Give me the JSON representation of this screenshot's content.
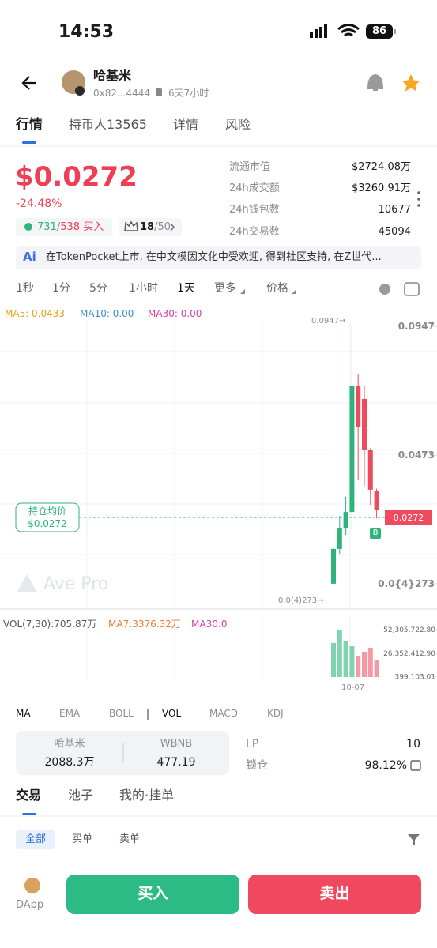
{
  "status": {
    "time": "14:53",
    "battery": "86"
  },
  "header": {
    "name": "哈基米",
    "address": "0x82...4444",
    "age": "6天7小时"
  },
  "tabs": [
    "行情",
    "持币人13565",
    "详情",
    "风险"
  ],
  "price": {
    "value": "$0.0272",
    "change": "-24.48%",
    "buys": "731",
    "separator": "/",
    "sells": "538",
    "buy_label": "买入",
    "rank": "18",
    "rank_total": "50"
  },
  "stats": [
    {
      "label": "流通市值",
      "value": "$2724.08万"
    },
    {
      "label": "24h成交额",
      "value": "$3260.91万"
    },
    {
      "label": "24h钱包数",
      "value": "10677"
    },
    {
      "label": "24h交易数",
      "value": "45094"
    }
  ],
  "banner": {
    "icon": "Ai",
    "text": "在TokenPocket上市, 在中文模因文化中受欢迎, 得到社区支持, 在Z世代..."
  },
  "intervals": [
    "1秒",
    "1分",
    "5分",
    "1小时",
    "1天",
    "更多",
    "价格"
  ],
  "ma_legend": [
    "MA5: 0.0433",
    "MA10: 0.00",
    "MA30: 0.00"
  ],
  "chart": {
    "type": "candlestick",
    "ylim": [
      0,
      0.0947
    ],
    "yticks": [
      0.0947,
      0.0473,
      {
        "value": 2.73e-05,
        "label": "0.0{4}273"
      }
    ],
    "high_marker": "0.0947→",
    "low_marker": "0.0(4)273→",
    "current_price": "0.0272",
    "avg_label": "持仓均价",
    "avg_price": "$0.0272",
    "buy_marker": "B",
    "watermark": "Ave Pro",
    "candles": [
      {
        "open": 3e-05,
        "high": 0.0131,
        "low": 2.73e-05,
        "close": 0.0128
      },
      {
        "open": 0.0128,
        "high": 0.025,
        "low": 0.011,
        "close": 0.0206
      },
      {
        "open": 0.0206,
        "high": 0.032,
        "low": 0.018,
        "close": 0.0264
      },
      {
        "open": 0.0264,
        "high": 0.0947,
        "low": 0.02,
        "close": 0.0729
      },
      {
        "open": 0.0729,
        "high": 0.077,
        "low": 0.038,
        "close": 0.0578
      },
      {
        "open": 0.068,
        "high": 0.073,
        "low": 0.036,
        "close": 0.0491
      },
      {
        "open": 0.0491,
        "high": 0.05,
        "low": 0.029,
        "close": 0.0346
      },
      {
        "open": 0.034,
        "high": 0.035,
        "low": 0.024,
        "close": 0.0272
      }
    ]
  },
  "volume": {
    "title": "VOL(7,30):705.87万",
    "ma7": "MA7:3376.32万",
    "ma30": "MA30:0",
    "ylim": [
      0,
      52305722.8
    ],
    "yticks": [
      {
        "value": 52305722.8,
        "label": "52,305,722.80"
      },
      {
        "value": 26352412.9,
        "label": "26,352,412.90"
      },
      {
        "value": 399103.01,
        "label": "399,103.01"
      }
    ],
    "date": "10-07",
    "values": [
      37500000,
      52300000,
      39200000,
      34000000,
      23500000,
      27900000,
      32300000,
      19200000
    ]
  },
  "indicators": [
    "MA",
    "EMA",
    "BOLL",
    "VOL",
    "MACD",
    "KDJ"
  ],
  "pool": {
    "token": "哈基米",
    "token_amount": "2088.3万",
    "quote": "WBNB",
    "quote_amount": "477.19",
    "lp_label": "LP",
    "lp_value": "10",
    "lock_label": "锁仓",
    "lock_value": "98.12%"
  },
  "trade_tabs": [
    "交易",
    "池子",
    "我的·挂单"
  ],
  "filters": [
    "全部",
    "买单",
    "卖单"
  ],
  "bottom": {
    "dapp": "DApp",
    "buy": "买入",
    "sell": "卖出"
  }
}
